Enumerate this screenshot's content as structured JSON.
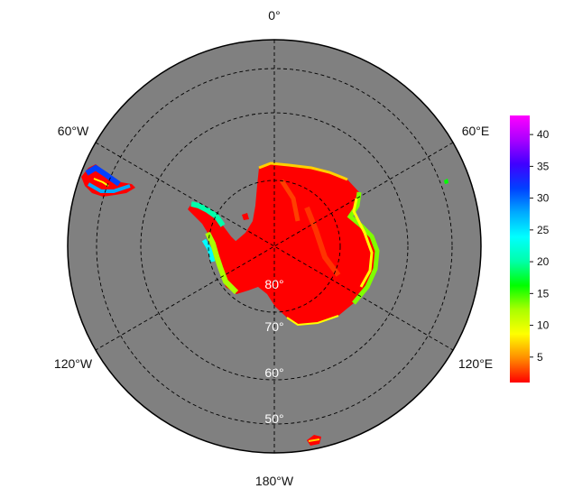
{
  "map": {
    "projection": "south polar stereographic",
    "ocean_color": "#808080",
    "background_color": "#ffffff",
    "graticule_style": "dashed",
    "longitude_labels": [
      {
        "id": "lon-0",
        "text": "0°"
      },
      {
        "id": "lon-60e",
        "text": "60°E"
      },
      {
        "id": "lon-120e",
        "text": "120°E"
      },
      {
        "id": "lon-180w",
        "text": "180°W"
      },
      {
        "id": "lon-120w",
        "text": "120°W"
      },
      {
        "id": "lon-60w",
        "text": "60°W"
      }
    ],
    "latitude_labels": [
      {
        "id": "lat-80",
        "text": "80°"
      },
      {
        "id": "lat-70",
        "text": "70°"
      },
      {
        "id": "lat-60",
        "text": "60°"
      },
      {
        "id": "lat-50",
        "text": "50°"
      }
    ],
    "dominant_value_color": "#ff0000"
  },
  "colorbar": {
    "palette": [
      "#ff0000",
      "#ff8c00",
      "#ffff00",
      "#aaff00",
      "#00ff00",
      "#00ffaa",
      "#00ffff",
      "#00aaff",
      "#0040ff",
      "#4000ff",
      "#aa00ff",
      "#ff00ff"
    ],
    "min": 1,
    "max": 43,
    "ticks": [
      "5",
      "10",
      "15",
      "20",
      "25",
      "30",
      "35",
      "40"
    ]
  }
}
